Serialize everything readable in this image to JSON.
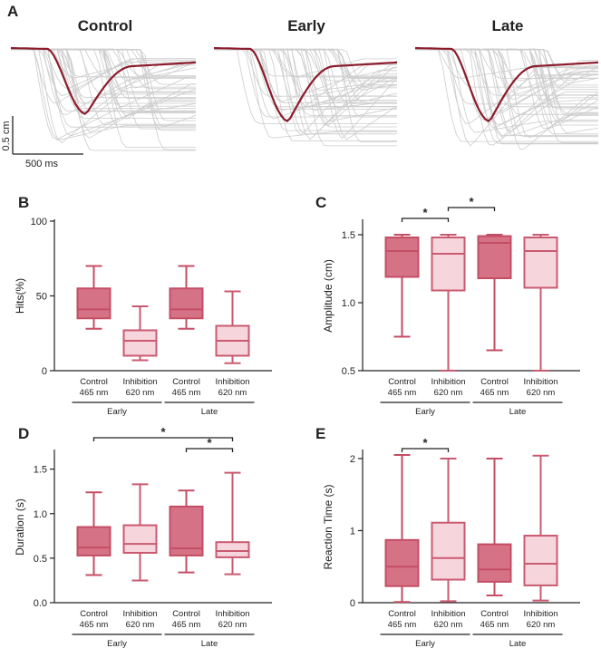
{
  "figure": {
    "panel_a": {
      "label": "A",
      "conditions": [
        "Control",
        "Early",
        "Late"
      ],
      "scale_y": "0.5 cm",
      "scale_x": "500 ms",
      "colors": {
        "mean": "#8b1c2c",
        "trial": "#cccccc",
        "control_title": "#8b1c2c"
      }
    }
  },
  "chart_data": [
    {
      "type": "box",
      "panel": "B",
      "ylabel": "Hits(%)",
      "ylim": [
        0,
        100
      ],
      "yticks": [
        0,
        50,
        100
      ],
      "categories": [
        [
          "Control",
          "465 nm"
        ],
        [
          "Inhibition",
          "620 nm"
        ],
        [
          "Control",
          "465 nm"
        ],
        [
          "Inhibition",
          "620 nm"
        ]
      ],
      "groups": [
        "Early",
        "Late"
      ],
      "boxes": [
        {
          "min": 28,
          "q1": 35,
          "median": 41,
          "q3": 55,
          "max": 70
        },
        {
          "min": 7,
          "q1": 10,
          "median": 20,
          "q3": 27,
          "max": 43
        },
        {
          "min": 28,
          "q1": 35,
          "median": 41,
          "q3": 55,
          "max": 70
        },
        {
          "min": 5,
          "q1": 10,
          "median": 20,
          "q3": 30,
          "max": 53
        }
      ],
      "significance": []
    },
    {
      "type": "box",
      "panel": "C",
      "ylabel": "Amplitude (cm)",
      "ylim": [
        0.5,
        1.6
      ],
      "yticks": [
        0.5,
        1.0,
        1.5
      ],
      "ytick_labels": [
        "0.5",
        "1.0",
        "1.5"
      ],
      "categories": [
        [
          "Control",
          "465 nm"
        ],
        [
          "Inhibition",
          "620 nm"
        ],
        [
          "Control",
          "465 nm"
        ],
        [
          "Inhibition",
          "620 nm"
        ]
      ],
      "groups": [
        "Early",
        "Late"
      ],
      "boxes": [
        {
          "min": 0.75,
          "q1": 1.19,
          "median": 1.38,
          "q3": 1.48,
          "max": 1.5
        },
        {
          "min": 0.5,
          "q1": 1.09,
          "median": 1.36,
          "q3": 1.48,
          "max": 1.5
        },
        {
          "min": 0.65,
          "q1": 1.18,
          "median": 1.44,
          "q3": 1.49,
          "max": 1.5
        },
        {
          "min": 0.5,
          "q1": 1.11,
          "median": 1.38,
          "q3": 1.48,
          "max": 1.5
        }
      ],
      "significance": [
        {
          "from": 0,
          "to": 1,
          "label": "*",
          "level": 0
        },
        {
          "from": 1,
          "to": 2,
          "label": "*",
          "level": 1
        }
      ]
    },
    {
      "type": "box",
      "panel": "D",
      "ylabel": "Duration (s)",
      "ylim": [
        0,
        1.7
      ],
      "yticks": [
        0,
        0.5,
        1.0,
        1.5
      ],
      "ytick_labels": [
        "0.0",
        "0.5",
        "1.0",
        "1.5"
      ],
      "categories": [
        [
          "Control",
          "465 nm"
        ],
        [
          "Inhibition",
          "620 nm"
        ],
        [
          "Control",
          "465 nm"
        ],
        [
          "Inhibition",
          "620 nm"
        ]
      ],
      "groups": [
        "Early",
        "Late"
      ],
      "boxes": [
        {
          "min": 0.31,
          "q1": 0.53,
          "median": 0.62,
          "q3": 0.85,
          "max": 1.24
        },
        {
          "min": 0.25,
          "q1": 0.56,
          "median": 0.66,
          "q3": 0.87,
          "max": 1.33
        },
        {
          "min": 0.34,
          "q1": 0.53,
          "median": 0.61,
          "q3": 1.08,
          "max": 1.26
        },
        {
          "min": 0.32,
          "q1": 0.51,
          "median": 0.58,
          "q3": 0.68,
          "max": 1.46
        }
      ],
      "significance": [
        {
          "from": 0,
          "to": 3,
          "label": "*",
          "level": 1
        },
        {
          "from": 2,
          "to": 3,
          "label": "*",
          "level": 0
        }
      ]
    },
    {
      "type": "box",
      "panel": "E",
      "ylabel": "Reaction Time (s)",
      "ylim": [
        0,
        2.1
      ],
      "yticks": [
        0,
        1,
        2
      ],
      "ytick_labels": [
        "0",
        "1",
        "2"
      ],
      "categories": [
        [
          "Control",
          "465 nm"
        ],
        [
          "Inhibition",
          "620 nm"
        ],
        [
          "Control",
          "465 nm"
        ],
        [
          "Inhibition",
          "620 nm"
        ]
      ],
      "groups": [
        "Early",
        "Late"
      ],
      "boxes": [
        {
          "min": 0.01,
          "q1": 0.23,
          "median": 0.5,
          "q3": 0.87,
          "max": 2.05
        },
        {
          "min": 0.02,
          "q1": 0.32,
          "median": 0.62,
          "q3": 1.11,
          "max": 2.0
        },
        {
          "min": 0.1,
          "q1": 0.29,
          "median": 0.46,
          "q3": 0.81,
          "max": 2.0
        },
        {
          "min": 0.03,
          "q1": 0.24,
          "median": 0.54,
          "q3": 0.93,
          "max": 2.04
        }
      ],
      "significance": [
        {
          "from": 0,
          "to": 1,
          "label": "*",
          "level": 0
        }
      ]
    }
  ]
}
